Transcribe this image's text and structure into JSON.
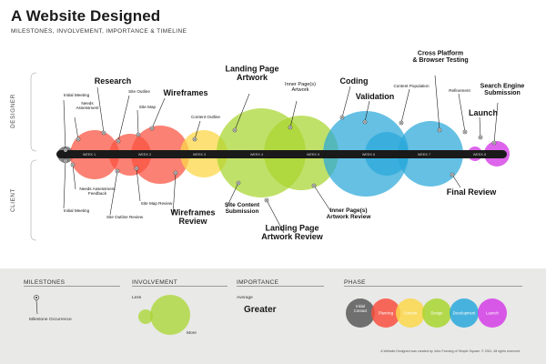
{
  "header": {
    "title": "A Website Designed",
    "subtitle": "MILESTONES, INVOLVEMENT, IMPORTANCE & TIMELINE"
  },
  "axis": {
    "designer": "DESIGNER",
    "client": "CLIENT",
    "weeks": [
      "WEEK 1",
      "WEEK 2",
      "WEEK 3",
      "WEEK 4",
      "WEEK 5",
      "WEEK 6",
      "WEEK 7",
      "WEEK 8"
    ]
  },
  "phases": {
    "initial_contact": {
      "label": "Initial Contact",
      "color": "#6f6f6f"
    },
    "planning": {
      "label": "Planning",
      "color": "#f9503f"
    },
    "content": {
      "label": "Content",
      "color": "#fcd74a"
    },
    "design": {
      "label": "Design",
      "color": "#a8d52f"
    },
    "development": {
      "label": "Development",
      "color": "#2aa8da"
    },
    "launch": {
      "label": "Launch",
      "color": "#d43ee6"
    }
  },
  "milestones": {
    "designer": [
      {
        "label": "Initial Meeting",
        "size": "s"
      },
      {
        "label": "Needs\nAssessment",
        "size": "s"
      },
      {
        "label": "Research",
        "size": "m"
      },
      {
        "label": "Site Map",
        "size": "s"
      },
      {
        "label": "Site Outline",
        "size": "s"
      },
      {
        "label": "Wireframes",
        "size": "m"
      },
      {
        "label": "Content Outline",
        "size": "s"
      },
      {
        "label": "Landing Page\nArtwork",
        "size": "m"
      },
      {
        "label": "Inner Page(s)\nArtwork",
        "size": "s"
      },
      {
        "label": "Coding",
        "size": "m"
      },
      {
        "label": "Validation",
        "size": "m"
      },
      {
        "label": "Content Population",
        "size": "s"
      },
      {
        "label": "Cross Platform\n& Browser Testing",
        "size": "s2"
      },
      {
        "label": "Refinement",
        "size": "s"
      },
      {
        "label": "Launch",
        "size": "m"
      },
      {
        "label": "Search Engine\nSubmission",
        "size": "s2"
      }
    ],
    "client": [
      {
        "label": "Initial Meeting",
        "size": "s"
      },
      {
        "label": "Needs Assessment\nFeedback",
        "size": "s"
      },
      {
        "label": "Site Outline Review",
        "size": "s"
      },
      {
        "label": "Site Map Review",
        "size": "s"
      },
      {
        "label": "Wireframes\nReview",
        "size": "m"
      },
      {
        "label": "Site Content\nSubmission",
        "size": "s2"
      },
      {
        "label": "Landing Page\nArtwork Review",
        "size": "m"
      },
      {
        "label": "Inner Page(s)\nArtwork Review",
        "size": "s2"
      },
      {
        "label": "Final Review",
        "size": "m"
      }
    ]
  },
  "legend": {
    "milestones": {
      "title": "MILESTONES",
      "item": "Milestone Occurrence"
    },
    "involvement": {
      "title": "INVOLVEMENT",
      "less": "Less",
      "more": "More"
    },
    "importance": {
      "title": "IMPORTANCE",
      "average": "Average",
      "greater": "Greater"
    },
    "phase": {
      "title": "PHASE"
    }
  },
  "credits": "A Website Designed was created by John Fanning of Simple Square. © 2011. All rights reserved."
}
